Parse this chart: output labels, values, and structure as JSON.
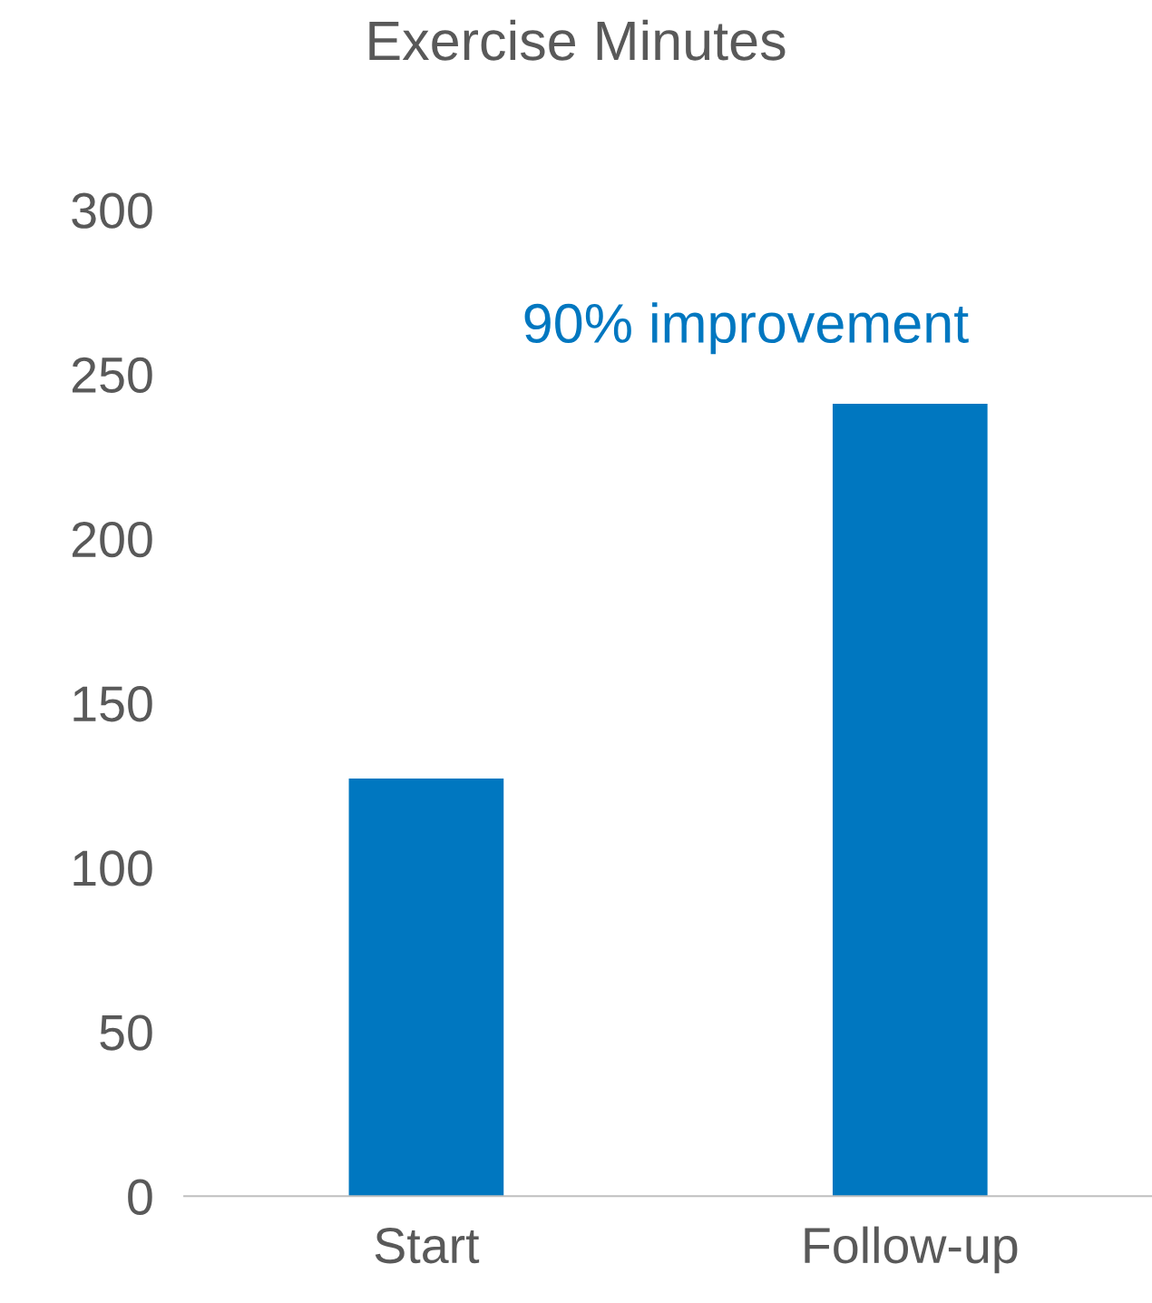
{
  "chart_data": {
    "type": "bar",
    "title": "Exercise Minutes",
    "categories": [
      "Start",
      "Follow-up"
    ],
    "series": [
      {
        "color": "#0077c0",
        "values": [
          127,
          241
        ]
      }
    ],
    "ylim": [
      0,
      300
    ],
    "yticks": [
      0,
      50,
      100,
      150,
      200,
      250,
      300
    ],
    "grid": false,
    "annotations": [
      "90% improvement"
    ]
  }
}
